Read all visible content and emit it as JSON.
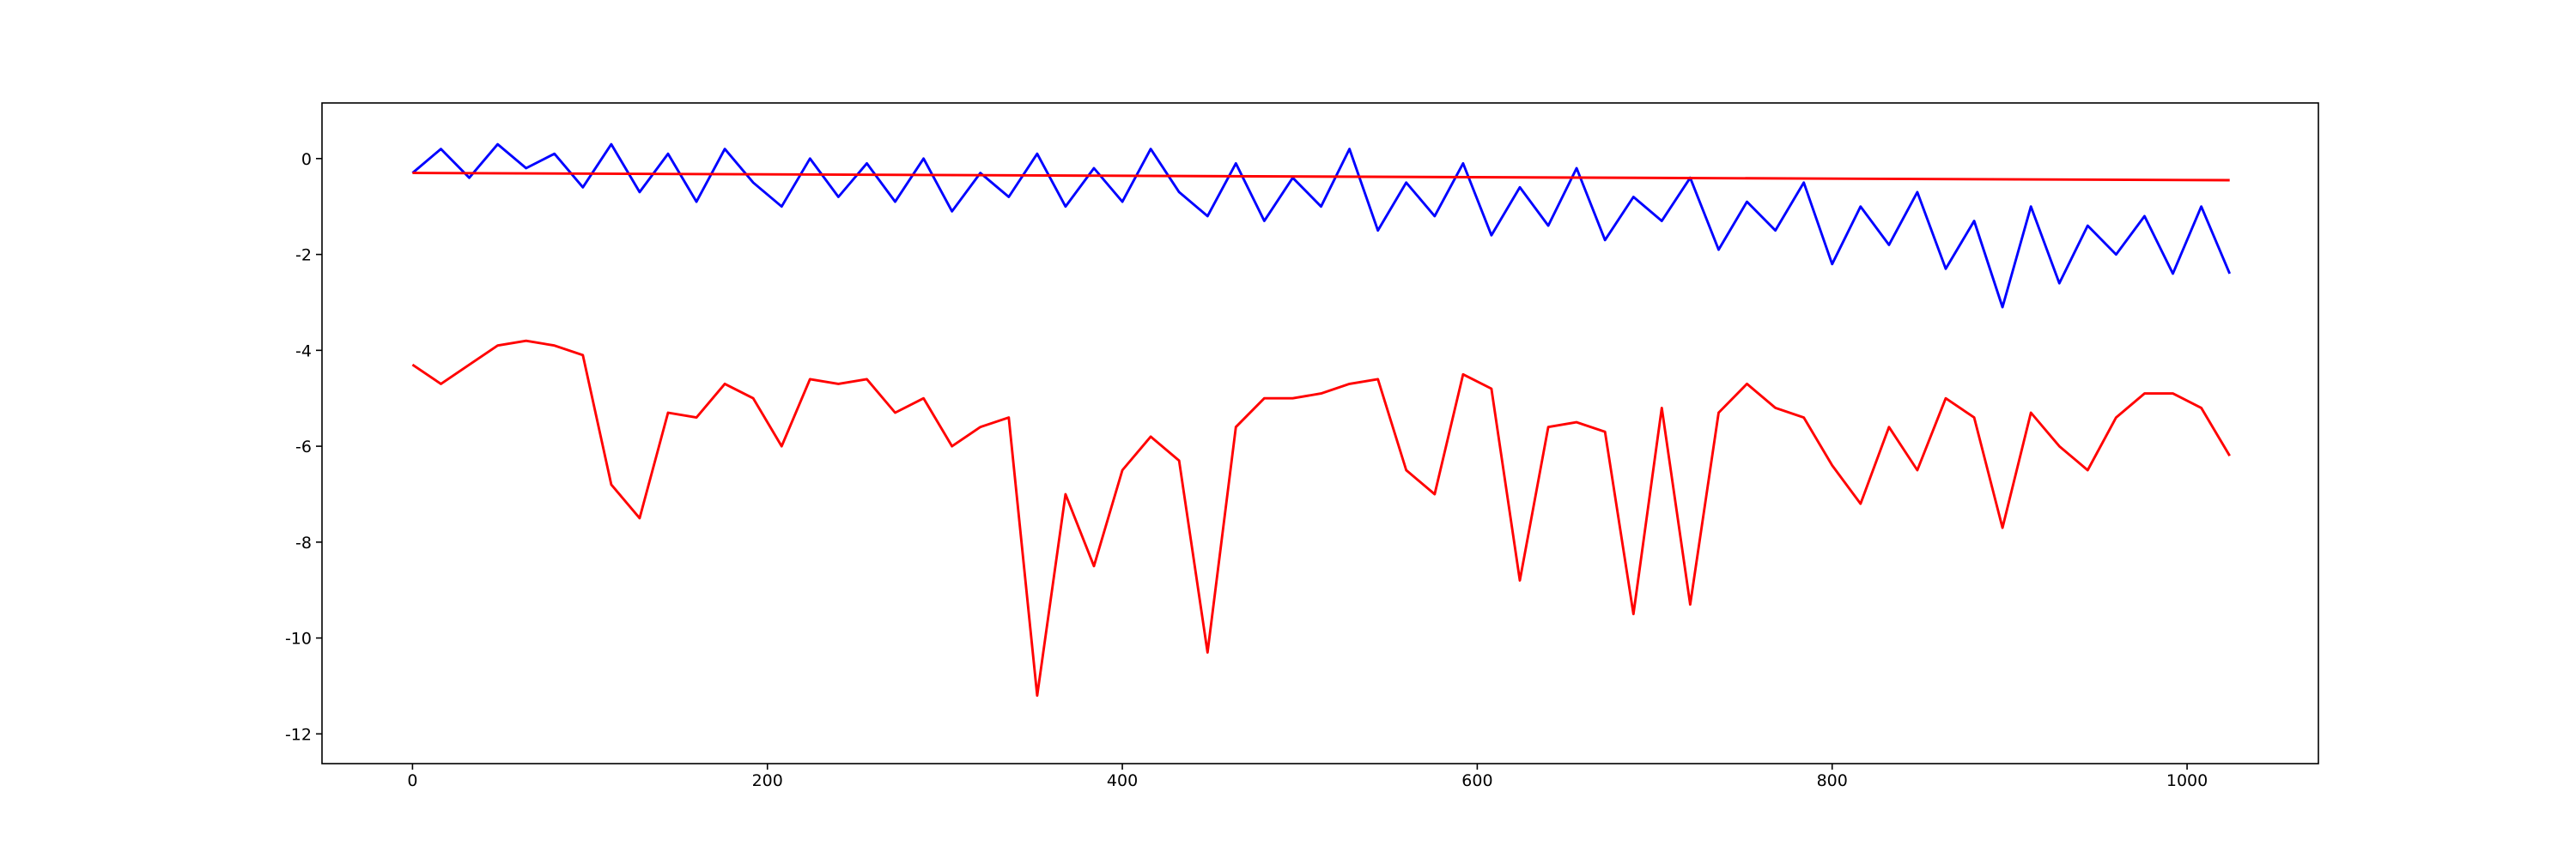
{
  "chart_data": {
    "type": "line",
    "x": [
      0,
      16,
      32,
      48,
      64,
      80,
      96,
      112,
      128,
      144,
      160,
      176,
      192,
      208,
      224,
      240,
      256,
      272,
      288,
      304,
      320,
      336,
      352,
      368,
      384,
      400,
      416,
      432,
      448,
      464,
      480,
      496,
      512,
      528,
      544,
      560,
      576,
      592,
      608,
      624,
      640,
      656,
      672,
      688,
      704,
      720,
      736,
      752,
      768,
      784,
      800,
      816,
      832,
      848,
      864,
      880,
      896,
      912,
      928,
      944,
      960,
      976,
      992,
      1008,
      1024
    ],
    "series": [
      {
        "color": "#0000ff",
        "values": [
          -0.3,
          0.2,
          -0.4,
          0.3,
          -0.2,
          0.1,
          -0.6,
          0.3,
          -0.7,
          0.1,
          -0.9,
          0.2,
          -0.5,
          -1.0,
          0.0,
          -0.8,
          -0.1,
          -0.9,
          0.0,
          -1.1,
          -0.3,
          -0.8,
          0.1,
          -1.0,
          -0.2,
          -0.9,
          0.2,
          -0.7,
          -1.2,
          -0.1,
          -1.3,
          -0.4,
          -1.0,
          0.2,
          -1.5,
          -0.5,
          -1.2,
          -0.1,
          -1.6,
          -0.6,
          -1.4,
          -0.2,
          -1.7,
          -0.8,
          -1.3,
          -0.4,
          -1.9,
          -0.9,
          -1.5,
          -0.5,
          -2.2,
          -1.0,
          -1.8,
          -0.7,
          -2.3,
          -1.3,
          -3.1,
          -1.0,
          -2.6,
          -1.4,
          -2.0,
          -1.2,
          -2.4,
          -1.0,
          -2.4
        ]
      },
      {
        "color": "#ff0000",
        "values": [
          -4.3,
          -4.7,
          -4.3,
          -3.9,
          -3.8,
          -3.9,
          -4.1,
          -6.8,
          -7.5,
          -5.3,
          -5.4,
          -4.7,
          -5.0,
          -6.0,
          -4.6,
          -4.7,
          -4.6,
          -5.3,
          -5.0,
          -6.0,
          -5.6,
          -5.4,
          -11.2,
          -7.0,
          -8.5,
          -6.5,
          -5.8,
          -6.3,
          -10.3,
          -5.6,
          -5.0,
          -5.0,
          -4.9,
          -4.7,
          -4.6,
          -6.5,
          -7.0,
          -4.5,
          -4.8,
          -8.8,
          -5.6,
          -5.5,
          -5.7,
          -9.5,
          -5.2,
          -9.3,
          -5.3,
          -4.7,
          -5.2,
          -5.4,
          -6.4,
          -7.2,
          -5.6,
          -6.5,
          -5.0,
          -5.4,
          -7.7,
          -5.3,
          -6.0,
          -6.5,
          -5.4,
          -4.9,
          -4.9,
          -5.2,
          -6.2
        ]
      },
      {
        "color": "#ff0000",
        "x": [
          0,
          1024
        ],
        "values": [
          -0.3,
          -0.45
        ]
      }
    ],
    "xlim": [
      -51,
      1074
    ],
    "ylim": [
      -12.62,
      1.16
    ],
    "xticks": [
      0,
      200,
      400,
      600,
      800,
      1000
    ],
    "yticks": [
      -12,
      -10,
      -8,
      -6,
      -4,
      -2,
      0
    ]
  }
}
